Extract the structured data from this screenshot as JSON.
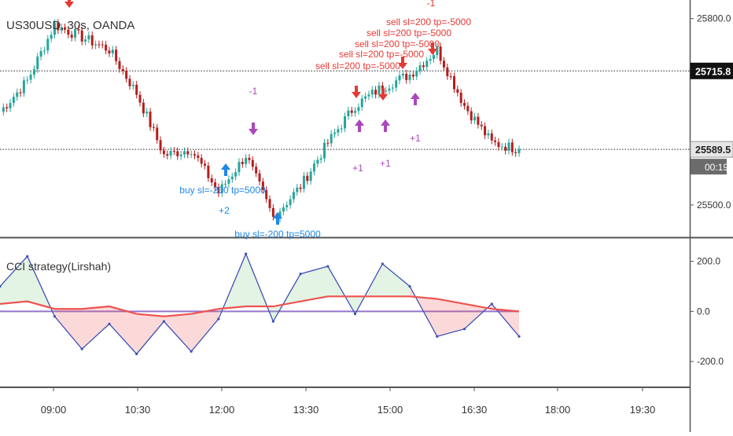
{
  "symbol_title": "US30USD, 30s, OANDA",
  "indicator_title": "CCI strategy(Lirshah)",
  "price_pane": {
    "y_ticks": [
      {
        "value": 25800,
        "label": "25800.0"
      },
      {
        "value": 25500,
        "label": "25500.0"
      }
    ],
    "ylim": [
      25448,
      25830
    ],
    "markers": [
      {
        "value": 25715.8,
        "label": "25715.8",
        "style": "black",
        "line": "dotted"
      },
      {
        "value": 25589.5,
        "label": "25589.5",
        "style": "gray",
        "line": "dotted"
      }
    ],
    "countdown": "00:19"
  },
  "indicator_pane": {
    "y_ticks": [
      {
        "value": 200,
        "label": "200.0"
      },
      {
        "value": 0,
        "label": "0.0"
      },
      {
        "value": -200,
        "label": "-200.0"
      }
    ],
    "ylim": [
      -300,
      290
    ]
  },
  "x_axis": {
    "ticks": [
      "09:00",
      "10:30",
      "12:00",
      "13:30",
      "15:00",
      "16:30",
      "18:00",
      "19:30"
    ]
  },
  "annotations": [
    {
      "text": "buy sl=-200 tp=5000",
      "color": "#1e88e5"
    },
    {
      "text": "+2",
      "color": "#1e88e5"
    },
    {
      "text": "buy sl=-200 tp=5000",
      "color": "#1e88e5"
    },
    {
      "text": "sell sl=200 tp=-5000",
      "color": "#e53935"
    },
    {
      "text": "sell sl=200 tp=-5000",
      "color": "#e53935"
    },
    {
      "text": "sell sl=200 tp=-5000",
      "color": "#e53935"
    },
    {
      "text": "sell sl=200 tp=-5000",
      "color": "#e53935"
    },
    {
      "text": "sell sl=200 tp=-5000",
      "color": "#e53935"
    },
    {
      "text": "-1",
      "color": "#ab47bc"
    },
    {
      "text": "-1",
      "color": "#e53935"
    },
    {
      "text": "+1",
      "color": "#ab47bc"
    },
    {
      "text": "+1",
      "color": "#ab47bc"
    },
    {
      "text": "+1",
      "color": "#ab47bc"
    }
  ],
  "chart_data": [
    {
      "type": "line",
      "title": "US30USD, 30s, OANDA",
      "x": [
        "08:00",
        "08:30",
        "09:00",
        "09:30",
        "10:00",
        "10:30",
        "11:00",
        "11:30",
        "12:00",
        "12:30",
        "13:00",
        "13:30",
        "14:00",
        "14:30",
        "15:00",
        "15:30",
        "16:00",
        "16:30",
        "17:00",
        "17:30"
      ],
      "series": [
        {
          "name": "price",
          "values": [
            25650,
            25700,
            25790,
            25770,
            25750,
            25680,
            25580,
            25590,
            25520,
            25580,
            25480,
            25530,
            25600,
            25660,
            25690,
            25710,
            25750,
            25660,
            25600,
            25590
          ]
        }
      ],
      "ylim": [
        25448,
        25830
      ],
      "xlabel": "",
      "ylabel": "",
      "grid": false
    },
    {
      "type": "line",
      "title": "CCI strategy(Lirshah)",
      "x": [
        "08:00",
        "08:30",
        "09:00",
        "09:30",
        "10:00",
        "10:30",
        "11:00",
        "11:30",
        "12:00",
        "12:30",
        "13:00",
        "13:30",
        "14:00",
        "14:30",
        "15:00",
        "15:30",
        "16:00",
        "16:30",
        "17:00",
        "17:30"
      ],
      "series": [
        {
          "values": [
            100,
            220,
            -20,
            -150,
            -50,
            -170,
            -40,
            -160,
            -30,
            230,
            -40,
            150,
            180,
            -10,
            190,
            100,
            -100,
            -70,
            30,
            -100
          ]
        },
        {
          "values": [
            30,
            40,
            10,
            10,
            20,
            -10,
            -20,
            -10,
            10,
            20,
            20,
            40,
            60,
            60,
            60,
            60,
            50,
            30,
            10,
            0
          ]
        }
      ],
      "ylim": [
        -300,
        290
      ],
      "xlabel": "",
      "ylabel": "",
      "grid": false
    }
  ]
}
